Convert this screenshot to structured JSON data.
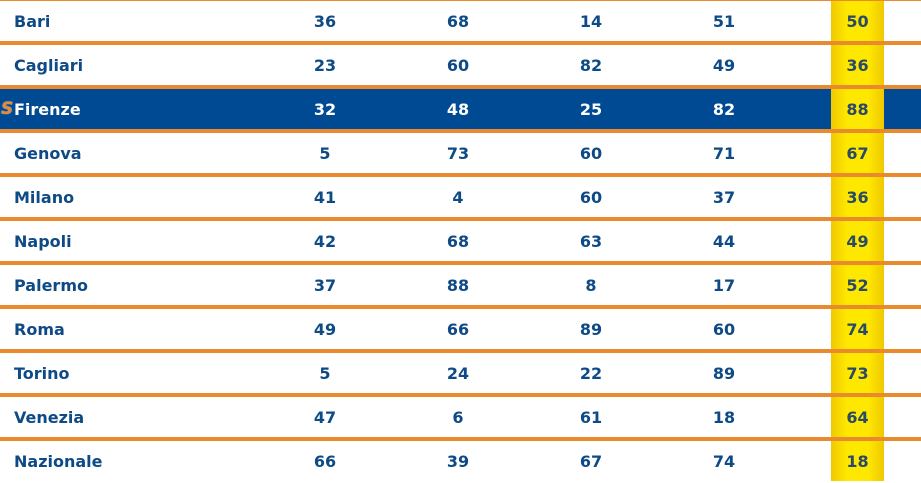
{
  "rows": [
    {
      "name": "Bari",
      "values": [
        "36",
        "68",
        "14",
        "51",
        "50"
      ]
    },
    {
      "name": "Cagliari",
      "values": [
        "23",
        "60",
        "82",
        "49",
        "36"
      ]
    },
    {
      "name": "Firenze",
      "values": [
        "32",
        "48",
        "25",
        "82",
        "88"
      ],
      "selected": true,
      "badge": "S"
    },
    {
      "name": "Genova",
      "values": [
        "5",
        "73",
        "60",
        "71",
        "67"
      ]
    },
    {
      "name": "Milano",
      "values": [
        "41",
        "4",
        "60",
        "37",
        "36"
      ]
    },
    {
      "name": "Napoli",
      "values": [
        "42",
        "68",
        "63",
        "44",
        "49"
      ]
    },
    {
      "name": "Palermo",
      "values": [
        "37",
        "88",
        "8",
        "17",
        "52"
      ]
    },
    {
      "name": "Roma",
      "values": [
        "49",
        "66",
        "89",
        "60",
        "74"
      ]
    },
    {
      "name": "Torino",
      "values": [
        "5",
        "24",
        "22",
        "89",
        "73"
      ]
    },
    {
      "name": "Venezia",
      "values": [
        "47",
        "6",
        "61",
        "18",
        "64"
      ]
    },
    {
      "name": "Nazionale",
      "values": [
        "66",
        "39",
        "67",
        "74",
        "18"
      ]
    }
  ],
  "colors": {
    "text": "#0e4a85",
    "selected_bg": "#004a93",
    "divider": "#e98a2e",
    "highlight_column": "#ffe800"
  }
}
